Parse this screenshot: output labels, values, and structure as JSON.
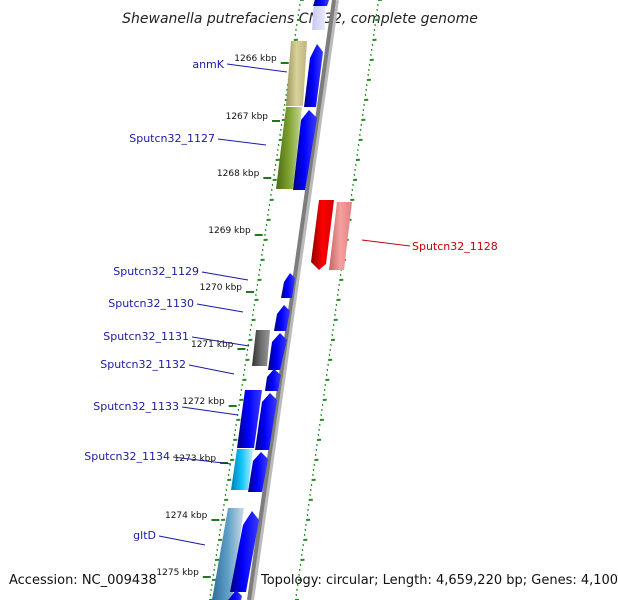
{
  "title": "Shewanella putrefaciens CN-32, complete genome",
  "footer": {
    "accession": "Accession: NC_009438",
    "topology": "Topology: circular; Length: 4,659,220 bp; Genes: 4,100"
  },
  "ticks": [
    {
      "label": "1266 kbp"
    },
    {
      "label": "1267 kbp"
    },
    {
      "label": "1268 kbp"
    },
    {
      "label": "1269 kbp"
    },
    {
      "label": "1270 kbp"
    },
    {
      "label": "1271 kbp"
    },
    {
      "label": "1272 kbp"
    },
    {
      "label": "1273 kbp"
    },
    {
      "label": "1274 kbp"
    },
    {
      "label": "1275 kbp"
    }
  ],
  "gene_labels": [
    {
      "id": "anmK",
      "text": "anmK",
      "color": "#1a1aa6"
    },
    {
      "id": "sputcn32-1127",
      "text": "Sputcn32_1127",
      "color": "#1a1aa6"
    },
    {
      "id": "sputcn32-1128",
      "text": "Sputcn32_1128",
      "color": "#cc0000"
    },
    {
      "id": "sputcn32-1129",
      "text": "Sputcn32_1129",
      "color": "#1a1aa6"
    },
    {
      "id": "sputcn32-1130",
      "text": "Sputcn32_1130",
      "color": "#1a1aa6"
    },
    {
      "id": "sputcn32-1131",
      "text": "Sputcn32_1131",
      "color": "#1a1aa6"
    },
    {
      "id": "sputcn32-1132",
      "text": "Sputcn32_1132",
      "color": "#1a1aa6"
    },
    {
      "id": "sputcn32-1133",
      "text": "Sputcn32_1133",
      "color": "#1a1aa6"
    },
    {
      "id": "sputcn32-1134",
      "text": "Sputcn32_1134",
      "color": "#1a1aa6"
    },
    {
      "id": "gltD",
      "text": "gltD",
      "color": "#1a1aa6"
    }
  ],
  "colors": {
    "cds_forward": "#0000ee",
    "cds_reverse": "#ee0000",
    "backbone": "#888888",
    "ring_dots": "#228b22"
  }
}
